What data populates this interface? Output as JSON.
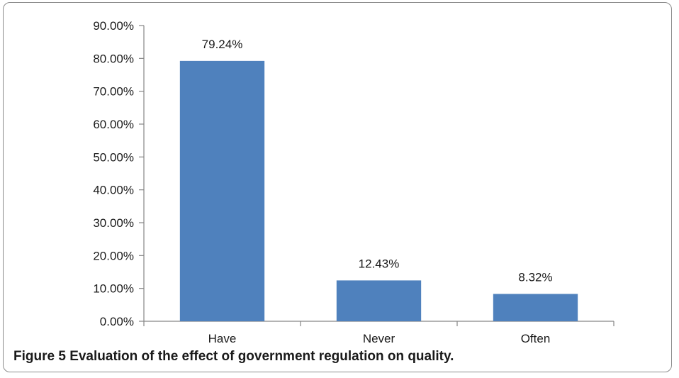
{
  "chart_data": {
    "type": "bar",
    "categories": [
      "Have",
      "Never",
      "Often"
    ],
    "values": [
      79.24,
      12.43,
      8.32
    ],
    "data_labels": [
      "79.24%",
      "12.43%",
      "8.32%"
    ],
    "ylim": [
      0,
      90
    ],
    "yticks": [
      0,
      10,
      20,
      30,
      40,
      50,
      60,
      70,
      80,
      90
    ],
    "ytick_labels": [
      "0.00%",
      "10.00%",
      "20.00%",
      "30.00%",
      "40.00%",
      "50.00%",
      "60.00%",
      "70.00%",
      "80.00%",
      "90.00%"
    ],
    "bar_color": "#4f81bd",
    "grid": false,
    "legend": "none"
  },
  "caption": {
    "label": "Figure 5",
    "text": "Evaluation of the effect of government regulation on quality."
  }
}
